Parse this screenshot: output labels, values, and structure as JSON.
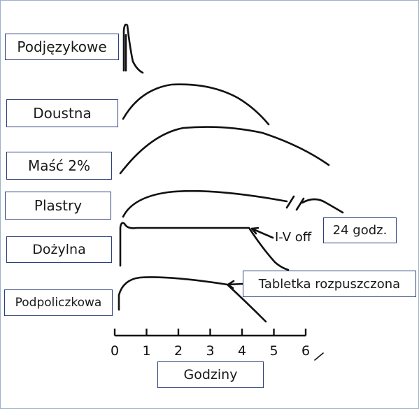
{
  "routes": [
    {
      "id": "sublingual",
      "label": "Podjęzykowe"
    },
    {
      "id": "oral",
      "label": "Doustna"
    },
    {
      "id": "ointment",
      "label": "Maść 2%"
    },
    {
      "id": "patches",
      "label": "Plastry"
    },
    {
      "id": "iv",
      "label": "Dożylna"
    },
    {
      "id": "buccal",
      "label": "Podpoliczkowa"
    }
  ],
  "annotations": {
    "iv_off": "I-V off",
    "tablet_dissolved": "Tabletka rozpuszczona",
    "hours_24": "24 godz."
  },
  "axis": {
    "title": "Godziny",
    "ticks": [
      "0",
      "1",
      "2",
      "3",
      "4",
      "5",
      "6"
    ]
  }
}
